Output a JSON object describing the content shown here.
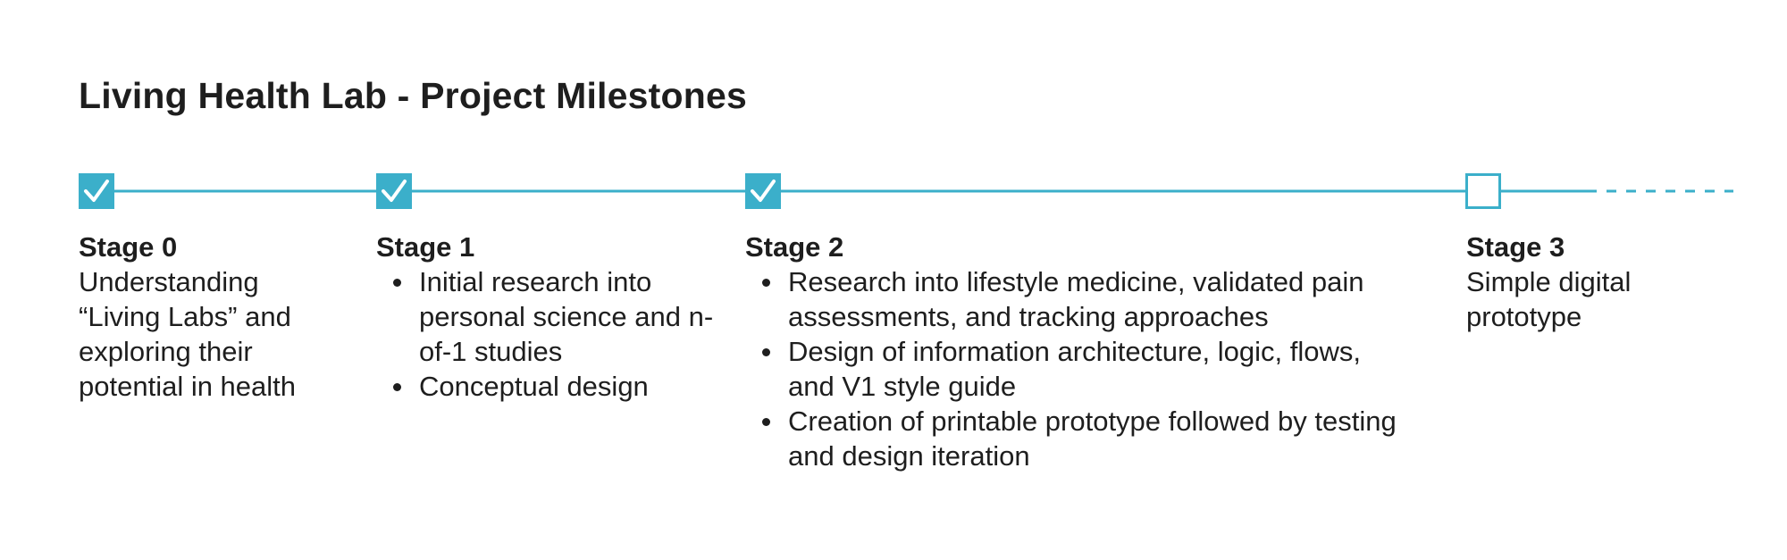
{
  "title": "Living Health Lab - Project Milestones",
  "colors": {
    "accent": "#3bafca",
    "text": "#1e1e1e",
    "background": "#ffffff"
  },
  "milestones": [
    {
      "title": "Stage 0",
      "status": "complete",
      "icon": "checkbox-checked-icon",
      "description": "Understanding “Living Labs” and exploring their potential in health"
    },
    {
      "title": "Stage 1",
      "status": "complete",
      "icon": "checkbox-checked-icon",
      "bullets": [
        "Initial research into personal science and n-of-1 studies",
        "Conceptual design"
      ]
    },
    {
      "title": "Stage 2",
      "status": "complete",
      "icon": "checkbox-checked-icon",
      "bullets": [
        "Research into lifestyle medicine, validated pain assessments, and tracking approaches",
        "Design of information architecture, logic, flows, and V1 style guide",
        "Creation of printable prototype followed by testing and design iteration"
      ]
    },
    {
      "title": "Stage 3",
      "status": "incomplete",
      "icon": "checkbox-empty-icon",
      "description": "Simple digital prototype"
    }
  ]
}
